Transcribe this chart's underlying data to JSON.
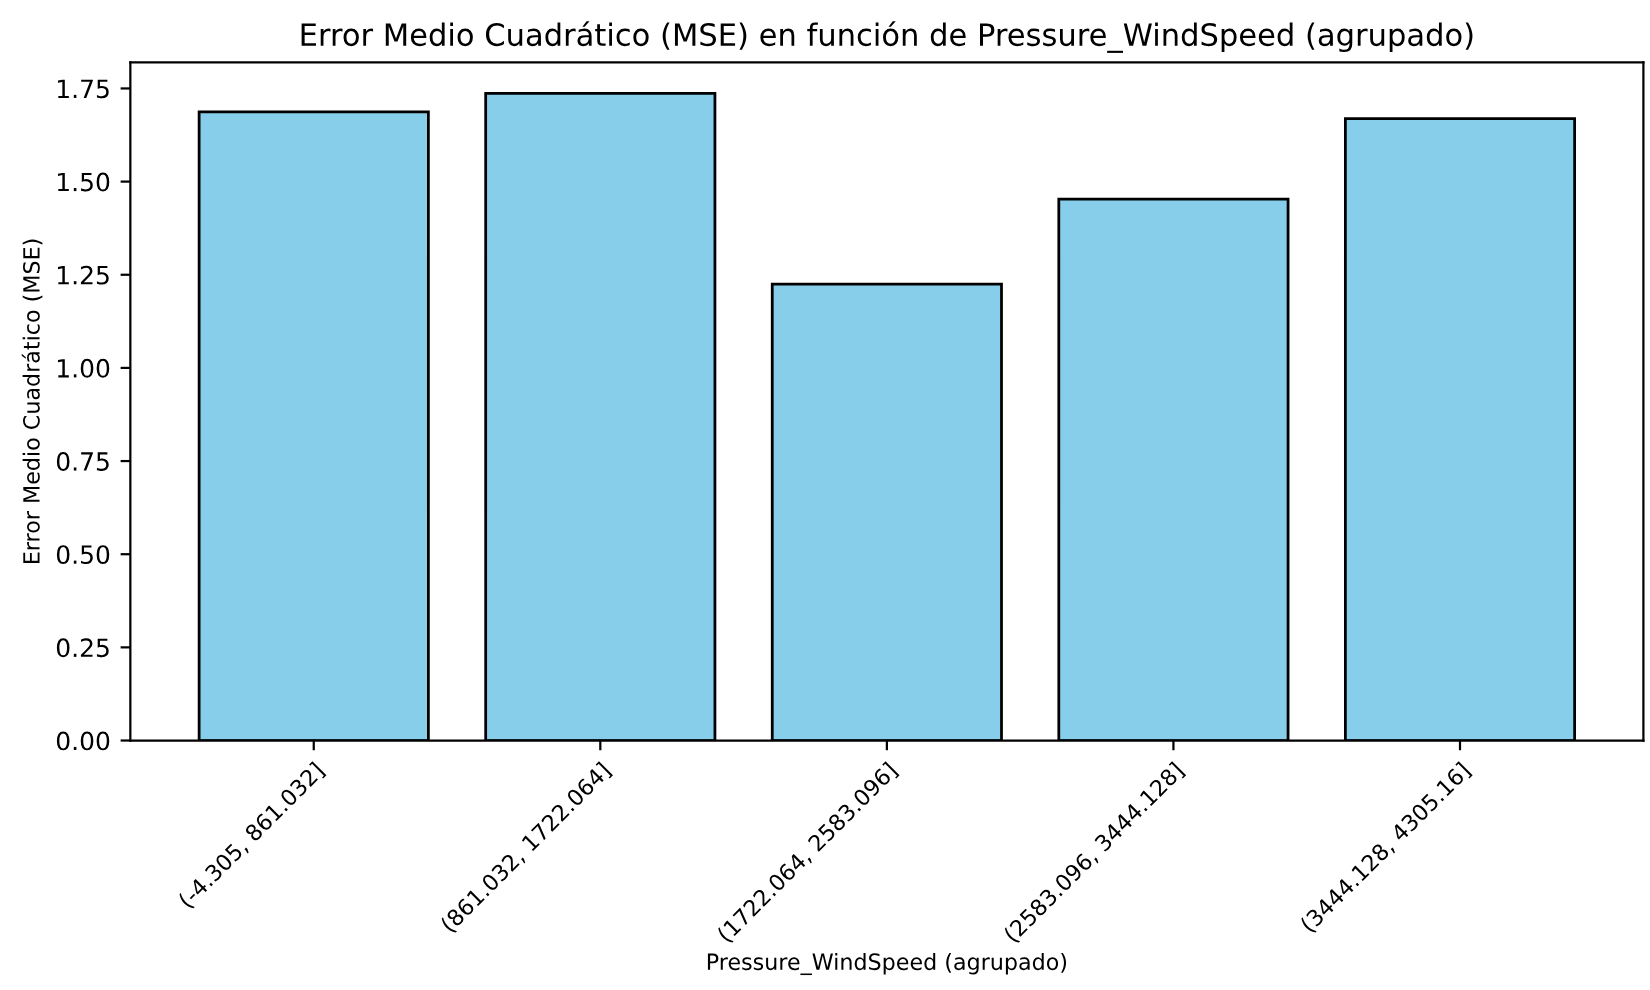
{
  "chart_data": {
    "type": "bar",
    "title": "Error Medio Cuadrático (MSE) en función de Pressure_WindSpeed (agrupado)",
    "xlabel": "Pressure_WindSpeed (agrupado)",
    "ylabel": "Error Medio Cuadrático (MSE)",
    "categories": [
      "(-4.305, 861.032]",
      "(861.032, 1722.064]",
      "(1722.064, 2583.096]",
      "(2583.096, 3444.128]",
      "(3444.128, 4305.16]"
    ],
    "values": [
      1.687,
      1.737,
      1.225,
      1.453,
      1.669
    ],
    "color": "#87ceeb",
    "ylim": [
      0,
      1.82
    ],
    "yticks": [
      {
        "value": 0,
        "label": "0.00"
      },
      {
        "value": 0.25,
        "label": "0.25"
      },
      {
        "value": 0.5,
        "label": "0.50"
      },
      {
        "value": 0.75,
        "label": "0.75"
      },
      {
        "value": 1,
        "label": "1.00"
      },
      {
        "value": 1.25,
        "label": "1.25"
      },
      {
        "value": 1.5,
        "label": "1.50"
      },
      {
        "value": 1.75,
        "label": "1.75"
      }
    ],
    "grid": false
  }
}
